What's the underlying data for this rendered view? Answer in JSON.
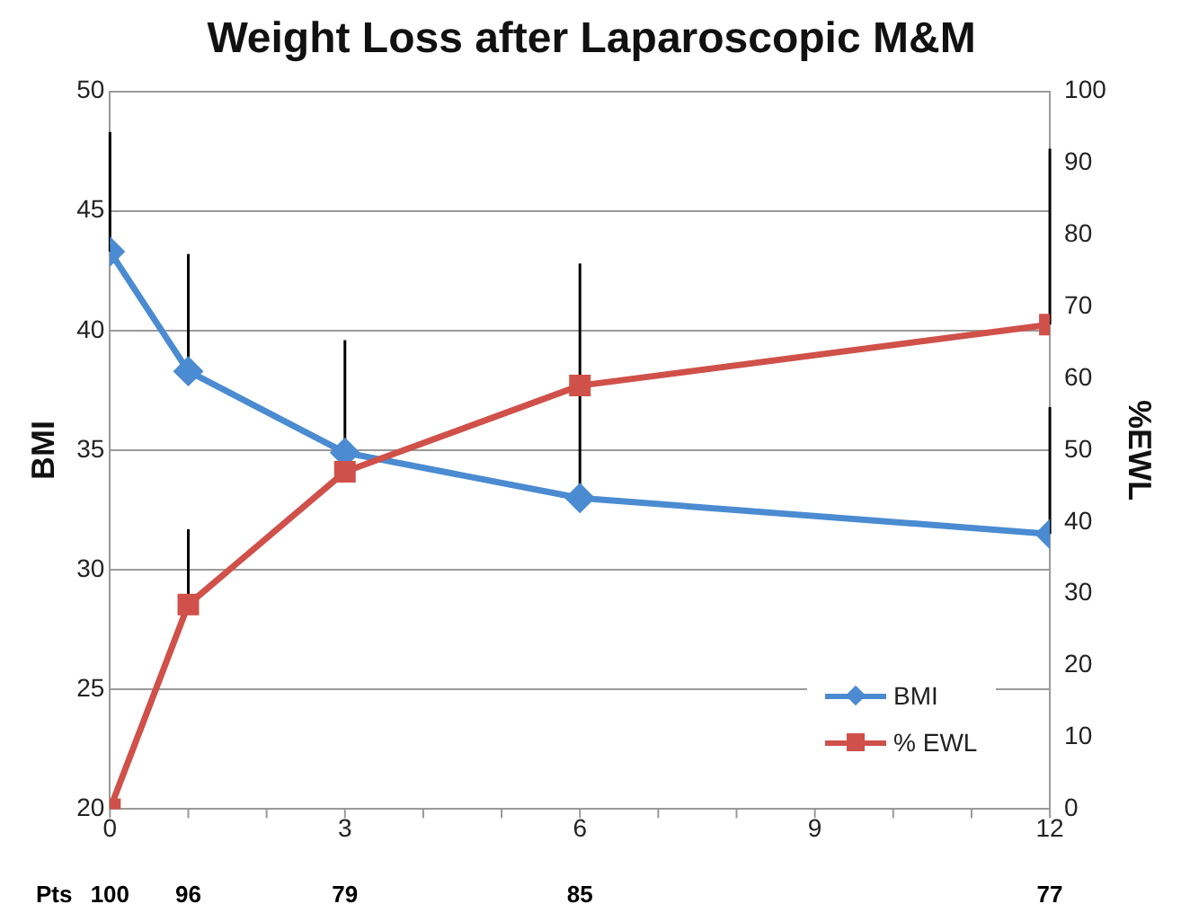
{
  "chart_data": {
    "type": "line",
    "title": "Weight Loss after Laparoscopic M&M",
    "ylabel": "BMI",
    "y2label": "%EWL",
    "x": [
      0,
      1,
      3,
      6,
      12
    ],
    "series": [
      {
        "name": "BMI",
        "color": "#4a8bd1",
        "values": [
          43.3,
          38.3,
          34.9,
          33.0,
          31.5
        ],
        "marker": "diamond",
        "errors": [
          [
            43.3,
            48.3
          ],
          [
            38.3,
            43.2
          ],
          [
            34.9,
            39.6
          ],
          [
            33.0,
            42.8
          ],
          [
            31.5,
            36.8
          ]
        ]
      },
      {
        "name": "% EWL",
        "color": "#d0504a",
        "axis": "y2",
        "values": [
          0,
          28.5,
          47,
          59,
          67.5
        ],
        "marker": "square",
        "errors": [
          null,
          [
            28.5,
            39
          ],
          null,
          null,
          [
            67.5,
            92
          ]
        ]
      }
    ],
    "xlim": [
      0,
      12
    ],
    "xticks": [
      0,
      3,
      6,
      9,
      12
    ],
    "ylim": [
      20,
      50
    ],
    "yticks": [
      20,
      25,
      30,
      35,
      40,
      45,
      50
    ],
    "y2lim": [
      0,
      100
    ],
    "y2ticks": [
      0,
      10,
      20,
      30,
      40,
      50,
      60,
      70,
      80,
      90,
      100
    ],
    "grid": "y",
    "legend": "bottom right",
    "line_style": "solid",
    "annotations": [
      "Pts",
      "100",
      "96",
      "79",
      "85",
      "77"
    ]
  }
}
